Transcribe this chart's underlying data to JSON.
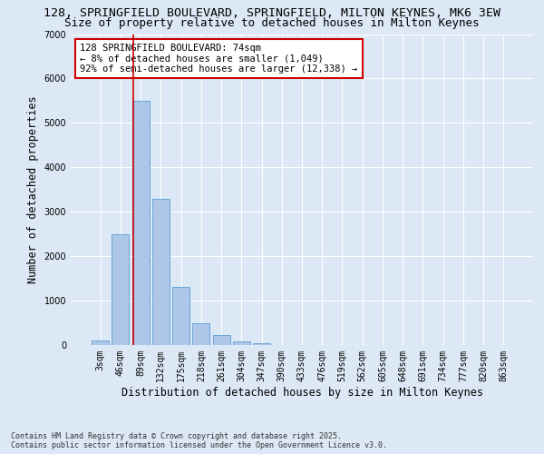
{
  "title_line1": "128, SPRINGFIELD BOULEVARD, SPRINGFIELD, MILTON KEYNES, MK6 3EW",
  "title_line2": "Size of property relative to detached houses in Milton Keynes",
  "xlabel": "Distribution of detached houses by size in Milton Keynes",
  "ylabel": "Number of detached properties",
  "footnote": "Contains HM Land Registry data © Crown copyright and database right 2025.\nContains public sector information licensed under the Open Government Licence v3.0.",
  "bin_labels": [
    "3sqm",
    "46sqm",
    "89sqm",
    "132sqm",
    "175sqm",
    "218sqm",
    "261sqm",
    "304sqm",
    "347sqm",
    "390sqm",
    "433sqm",
    "476sqm",
    "519sqm",
    "562sqm",
    "605sqm",
    "648sqm",
    "691sqm",
    "734sqm",
    "777sqm",
    "820sqm",
    "863sqm"
  ],
  "bar_values": [
    100,
    2500,
    5500,
    3300,
    1300,
    490,
    230,
    90,
    50,
    0,
    0,
    0,
    0,
    0,
    0,
    0,
    0,
    0,
    0,
    0,
    0
  ],
  "bar_color": "#aec6e8",
  "bar_edge_color": "#5a9fd4",
  "property_line_x": 1.65,
  "property_line_color": "#cc0000",
  "annotation_text": "128 SPRINGFIELD BOULEVARD: 74sqm\n← 8% of detached houses are smaller (1,049)\n92% of semi-detached houses are larger (12,338) →",
  "annotation_box_color": "#cc0000",
  "ylim": [
    0,
    7000
  ],
  "yticks": [
    0,
    1000,
    2000,
    3000,
    4000,
    5000,
    6000,
    7000
  ],
  "background_color": "#dce8f5",
  "plot_bg_color": "#dce8f5",
  "grid_color": "#ffffff",
  "title_fontsize": 9.5,
  "subtitle_fontsize": 9,
  "axis_label_fontsize": 8.5,
  "tick_fontsize": 7,
  "annotation_fontsize": 7.5,
  "footnote_fontsize": 6
}
